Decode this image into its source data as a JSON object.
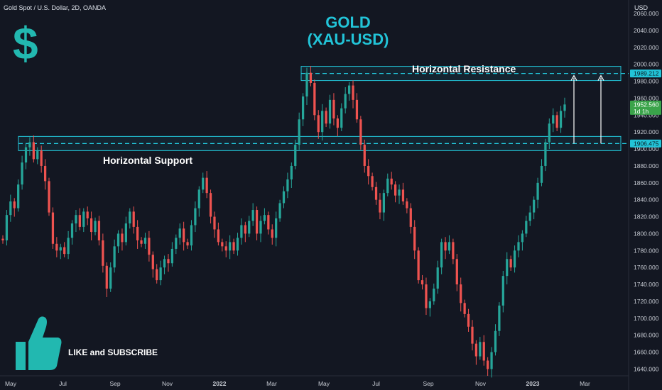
{
  "header": {
    "symbol_title": "Gold Spot / U.S. Dollar, 2D, OANDA",
    "currency": "USD"
  },
  "annotations": {
    "title_line1": "GOLD",
    "title_line2": "(XAU-USD)",
    "resistance_label": "Horizontal Resistance",
    "support_label": "Horizontal Support",
    "cta": "LIKE and SUBSCRIBE",
    "dollar_sign": "$"
  },
  "price_tags": {
    "resistance": "1989.212",
    "last_price": "1952.560",
    "countdown": "1d 1h",
    "support": "1906.475"
  },
  "colors": {
    "up": "#26a69a",
    "down": "#ef5350",
    "accent": "#22c4d8",
    "last_tag": "#3aa34a"
  },
  "icons": [
    "dollar-icon",
    "thumbs-up-icon"
  ],
  "chart_data": {
    "type": "candlestick",
    "ylim": [
      1632,
      2076
    ],
    "y_ticks": [
      1640,
      1660,
      1680,
      1700,
      1720,
      1740,
      1760,
      1780,
      1800,
      1820,
      1840,
      1860,
      1880,
      1900,
      1920,
      1940,
      1960,
      1980,
      2000,
      2020,
      2040,
      2060
    ],
    "x_labels": [
      "May",
      "Jul",
      "Sep",
      "Nov",
      "2022",
      "Mar",
      "May",
      "Jul",
      "Sep",
      "Nov",
      "2023",
      "Mar"
    ],
    "levels": {
      "resistance": 1989.212,
      "support": 1906.475
    },
    "candles": [
      [
        1794,
        1792
      ],
      [
        1792,
        1822
      ],
      [
        1822,
        1838
      ],
      [
        1838,
        1830
      ],
      [
        1830,
        1858
      ],
      [
        1858,
        1884
      ],
      [
        1884,
        1902
      ],
      [
        1902,
        1908
      ],
      [
        1908,
        1888
      ],
      [
        1888,
        1898
      ],
      [
        1898,
        1880
      ],
      [
        1880,
        1862
      ],
      [
        1862,
        1825
      ],
      [
        1825,
        1788
      ],
      [
        1788,
        1780
      ],
      [
        1780,
        1784
      ],
      [
        1784,
        1776
      ],
      [
        1776,
        1795
      ],
      [
        1795,
        1812
      ],
      [
        1812,
        1822
      ],
      [
        1822,
        1808
      ],
      [
        1808,
        1826
      ],
      [
        1826,
        1818
      ],
      [
        1818,
        1802
      ],
      [
        1802,
        1815
      ],
      [
        1815,
        1792
      ],
      [
        1792,
        1762
      ],
      [
        1762,
        1735
      ],
      [
        1735,
        1760
      ],
      [
        1760,
        1785
      ],
      [
        1785,
        1800
      ],
      [
        1800,
        1790
      ],
      [
        1790,
        1812
      ],
      [
        1812,
        1826
      ],
      [
        1826,
        1808
      ],
      [
        1808,
        1792
      ],
      [
        1792,
        1788
      ],
      [
        1788,
        1795
      ],
      [
        1795,
        1775
      ],
      [
        1775,
        1758
      ],
      [
        1758,
        1745
      ],
      [
        1745,
        1760
      ],
      [
        1760,
        1770
      ],
      [
        1770,
        1765
      ],
      [
        1765,
        1782
      ],
      [
        1782,
        1795
      ],
      [
        1795,
        1806
      ],
      [
        1806,
        1790
      ],
      [
        1790,
        1786
      ],
      [
        1786,
        1810
      ],
      [
        1810,
        1830
      ],
      [
        1830,
        1852
      ],
      [
        1852,
        1866
      ],
      [
        1866,
        1848
      ],
      [
        1848,
        1820
      ],
      [
        1820,
        1805
      ],
      [
        1805,
        1790
      ],
      [
        1790,
        1785
      ],
      [
        1785,
        1780
      ],
      [
        1780,
        1790
      ],
      [
        1790,
        1780
      ],
      [
        1780,
        1795
      ],
      [
        1795,
        1810
      ],
      [
        1810,
        1800
      ],
      [
        1800,
        1815
      ],
      [
        1815,
        1828
      ],
      [
        1828,
        1800
      ],
      [
        1800,
        1815
      ],
      [
        1815,
        1822
      ],
      [
        1822,
        1805
      ],
      [
        1805,
        1795
      ],
      [
        1795,
        1818
      ],
      [
        1818,
        1836
      ],
      [
        1836,
        1850
      ],
      [
        1850,
        1864
      ],
      [
        1864,
        1880
      ],
      [
        1880,
        1905
      ],
      [
        1905,
        1935
      ],
      [
        1935,
        1962
      ],
      [
        1962,
        1990
      ],
      [
        1990,
        1978
      ],
      [
        1978,
        1940
      ],
      [
        1940,
        1920
      ],
      [
        1920,
        1945
      ],
      [
        1945,
        1930
      ],
      [
        1930,
        1958
      ],
      [
        1958,
        1936
      ],
      [
        1936,
        1925
      ],
      [
        1925,
        1948
      ],
      [
        1948,
        1965
      ],
      [
        1965,
        1975
      ],
      [
        1975,
        1958
      ],
      [
        1958,
        1935
      ],
      [
        1935,
        1905
      ],
      [
        1905,
        1880
      ],
      [
        1880,
        1868
      ],
      [
        1868,
        1855
      ],
      [
        1855,
        1840
      ],
      [
        1840,
        1825
      ],
      [
        1825,
        1848
      ],
      [
        1848,
        1865
      ],
      [
        1865,
        1858
      ],
      [
        1858,
        1845
      ],
      [
        1845,
        1852
      ],
      [
        1852,
        1838
      ],
      [
        1838,
        1830
      ],
      [
        1830,
        1808
      ],
      [
        1808,
        1780
      ],
      [
        1780,
        1745
      ],
      [
        1745,
        1740
      ],
      [
        1740,
        1712
      ],
      [
        1712,
        1720
      ],
      [
        1720,
        1735
      ],
      [
        1735,
        1760
      ],
      [
        1760,
        1790
      ],
      [
        1790,
        1780
      ],
      [
        1780,
        1790
      ],
      [
        1790,
        1770
      ],
      [
        1770,
        1740
      ],
      [
        1740,
        1718
      ],
      [
        1718,
        1705
      ],
      [
        1705,
        1690
      ],
      [
        1690,
        1670
      ],
      [
        1670,
        1655
      ],
      [
        1655,
        1672
      ],
      [
        1672,
        1650
      ],
      [
        1650,
        1640
      ],
      [
        1640,
        1660
      ],
      [
        1660,
        1685
      ],
      [
        1685,
        1715
      ],
      [
        1715,
        1750
      ],
      [
        1750,
        1770
      ],
      [
        1770,
        1760
      ],
      [
        1760,
        1780
      ],
      [
        1780,
        1790
      ],
      [
        1790,
        1800
      ],
      [
        1800,
        1815
      ],
      [
        1815,
        1825
      ],
      [
        1825,
        1840
      ],
      [
        1840,
        1860
      ],
      [
        1860,
        1880
      ],
      [
        1880,
        1908
      ],
      [
        1908,
        1930
      ],
      [
        1930,
        1940
      ],
      [
        1940,
        1925
      ],
      [
        1925,
        1945
      ],
      [
        1945,
        1952.56
      ]
    ]
  }
}
